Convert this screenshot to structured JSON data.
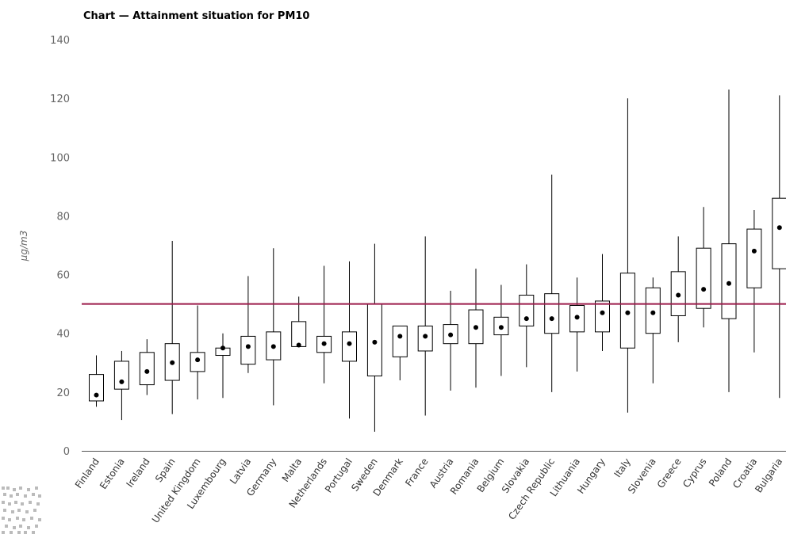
{
  "chart_data": {
    "type": "boxplot",
    "title": "Chart — Attainment situation for PM10",
    "ylabel": "µg/m3",
    "ylim": [
      0,
      140
    ],
    "yticks": [
      0,
      20,
      40,
      60,
      80,
      100,
      120,
      140
    ],
    "grid": false,
    "reference_line": {
      "value": 50,
      "color": "#9b1b4a"
    },
    "box_color": "#000000",
    "point_color": "#000000",
    "categories": [
      "Finland",
      "Estonia",
      "Ireland",
      "Spain",
      "United Kingdom",
      "Luxembourg",
      "Latvia",
      "Germany",
      "Malta",
      "Netherlands",
      "Portugal",
      "Sweden",
      "Denmark",
      "France",
      "Austria",
      "Romania",
      "Belgium",
      "Slovakia",
      "Czech Republic",
      "Lithuania",
      "Hungary",
      "Italy",
      "Slovenia",
      "Greece",
      "Cyprus",
      "Poland",
      "Croatia",
      "Bulgaria"
    ],
    "min": [
      15,
      10.5,
      19,
      12.5,
      17.5,
      18,
      26.5,
      15.5,
      35.5,
      23,
      11,
      6.5,
      24,
      12,
      20.5,
      21.5,
      25.5,
      28.5,
      20,
      27,
      34,
      13,
      23,
      37,
      42,
      20,
      33.5,
      18
    ],
    "q1": [
      17,
      21,
      22.5,
      24,
      27,
      32.5,
      29.5,
      31,
      35.5,
      33.5,
      30.5,
      25.5,
      32,
      34,
      36.5,
      36.5,
      39.5,
      42.5,
      40,
      40.5,
      40.5,
      35,
      40,
      46,
      48.5,
      45,
      55.5,
      62
    ],
    "median": [
      19,
      23.5,
      27,
      30,
      31,
      35,
      35.5,
      35.5,
      36,
      36.5,
      36.5,
      37,
      39,
      39,
      39.5,
      42,
      42,
      45,
      45,
      45.5,
      47,
      47,
      47,
      53,
      55,
      57,
      68,
      76
    ],
    "q3": [
      26,
      30.5,
      33.5,
      36.5,
      33.5,
      35,
      39,
      40.5,
      44,
      39,
      40.5,
      50,
      42.5,
      42.5,
      43,
      48,
      45.5,
      53,
      53.5,
      49.5,
      51,
      60.5,
      55.5,
      61,
      69,
      70.5,
      75.5,
      86
    ],
    "max": [
      32.5,
      34,
      38,
      71.5,
      49.5,
      40,
      59.5,
      69,
      52.5,
      63,
      64.5,
      70.5,
      42.5,
      73,
      54.5,
      62,
      56.5,
      63.5,
      94,
      59,
      67,
      120,
      59,
      73,
      83,
      123,
      82,
      121
    ]
  }
}
